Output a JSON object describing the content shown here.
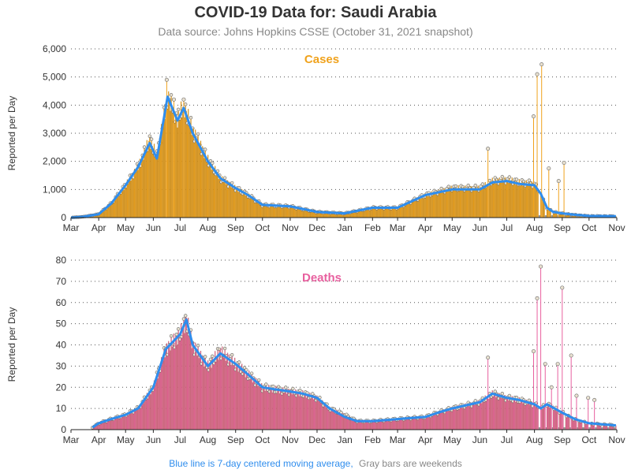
{
  "title": "COVID-19 Data for: Saudi Arabia",
  "subtitle": "Data source: Johns Hopkins CSSE (October 31, 2021 snapshot)",
  "footer": {
    "blue_note": "Blue line is 7-day centered moving average,",
    "gray_note": "Gray bars are weekends"
  },
  "colors": {
    "cases": "#f0a21c",
    "deaths": "#e8609f",
    "average_line": "#2f8ded",
    "weekend": "#888888",
    "grid": "#555555"
  },
  "chart_data": [
    {
      "type": "bar",
      "panel": "cases",
      "title": "Cases",
      "ylabel": "Reported per Day",
      "ylim": [
        0,
        6000
      ],
      "yticks": [
        "0",
        "1,000",
        "2,000",
        "3,000",
        "4,000",
        "5,000",
        "6,000"
      ],
      "ytick_values": [
        0,
        1000,
        2000,
        3000,
        4000,
        5000,
        6000
      ],
      "xticks": [
        "Mar",
        "Apr",
        "May",
        "Jun",
        "Jul",
        "Aug",
        "Sep",
        "Oct",
        "Nov",
        "Dec",
        "Jan",
        "Feb",
        "Mar",
        "Apr",
        "May",
        "Jun",
        "Jul",
        "Aug",
        "Sep",
        "Oct",
        "Nov"
      ],
      "grid": "horizontal dotted",
      "x_start": "2020-03-01",
      "x_end": "2021-11-01",
      "series": [
        {
          "name": "Cases",
          "style": "bars",
          "x": [
            "2020-03-01",
            "2020-03-15",
            "2020-04-01",
            "2020-04-15",
            "2020-05-01",
            "2020-05-15",
            "2020-05-28",
            "2020-06-05",
            "2020-06-17",
            "2020-06-28",
            "2020-07-05",
            "2020-07-15",
            "2020-08-01",
            "2020-08-15",
            "2020-09-01",
            "2020-09-15",
            "2020-10-01",
            "2020-11-01",
            "2020-12-01",
            "2021-01-01",
            "2021-02-01",
            "2021-03-01",
            "2021-04-01",
            "2021-05-01",
            "2021-06-01",
            "2021-06-15",
            "2021-07-01",
            "2021-07-15",
            "2021-08-01",
            "2021-08-08",
            "2021-08-15",
            "2021-08-22",
            "2021-09-01",
            "2021-09-15",
            "2021-10-01",
            "2021-10-31"
          ],
          "values": [
            0,
            30,
            120,
            500,
            1150,
            1800,
            2750,
            2200,
            4300,
            3500,
            4000,
            3100,
            2050,
            1400,
            1050,
            800,
            450,
            400,
            200,
            150,
            350,
            350,
            800,
            1050,
            1050,
            1300,
            1350,
            1250,
            1200,
            800,
            350,
            200,
            150,
            100,
            60,
            50
          ]
        },
        {
          "name": "7-day centered moving average",
          "style": "line",
          "x": [
            "2020-03-01",
            "2020-03-15",
            "2020-04-01",
            "2020-04-15",
            "2020-05-01",
            "2020-05-15",
            "2020-05-28",
            "2020-06-05",
            "2020-06-17",
            "2020-06-28",
            "2020-07-05",
            "2020-07-15",
            "2020-08-01",
            "2020-08-15",
            "2020-09-01",
            "2020-09-15",
            "2020-10-01",
            "2020-11-01",
            "2020-12-01",
            "2021-01-01",
            "2021-02-01",
            "2021-03-01",
            "2021-04-01",
            "2021-05-01",
            "2021-06-01",
            "2021-06-15",
            "2021-07-01",
            "2021-07-15",
            "2021-08-01",
            "2021-08-08",
            "2021-08-15",
            "2021-08-22",
            "2021-09-01",
            "2021-09-15",
            "2021-10-01",
            "2021-10-31"
          ],
          "values": [
            0,
            30,
            120,
            500,
            1150,
            1800,
            2650,
            2100,
            4300,
            3450,
            3900,
            3000,
            2000,
            1400,
            1050,
            800,
            450,
            400,
            200,
            150,
            350,
            350,
            800,
            1000,
            1000,
            1250,
            1300,
            1200,
            1150,
            850,
            350,
            200,
            150,
            100,
            60,
            50
          ]
        }
      ],
      "spikes": {
        "x": [
          "2020-06-16",
          "2020-06-24",
          "2020-07-05",
          "2021-06-10",
          "2021-07-31",
          "2021-08-04",
          "2021-08-09",
          "2021-08-17",
          "2021-08-28",
          "2021-09-03"
        ],
        "values": [
          4900,
          4200,
          4200,
          2450,
          3600,
          5100,
          5450,
          1750,
          1300,
          1950
        ]
      }
    },
    {
      "type": "bar",
      "panel": "deaths",
      "title": "Deaths",
      "ylabel": "Reported per Day",
      "ylim": [
        0,
        80
      ],
      "yticks": [
        "0",
        "10",
        "20",
        "30",
        "40",
        "50",
        "60",
        "70",
        "80"
      ],
      "ytick_values": [
        0,
        10,
        20,
        30,
        40,
        50,
        60,
        70,
        80
      ],
      "xticks": [
        "Mar",
        "Apr",
        "May",
        "Jun",
        "Jul",
        "Aug",
        "Sep",
        "Oct",
        "Nov",
        "Dec",
        "Jan",
        "Feb",
        "Mar",
        "Apr",
        "May",
        "Jun",
        "Jul",
        "Aug",
        "Sep",
        "Oct",
        "Nov"
      ],
      "grid": "horizontal dotted",
      "x_start": "2020-03-01",
      "x_end": "2021-11-01",
      "series": [
        {
          "name": "Deaths",
          "style": "bars",
          "x": [
            "2020-03-25",
            "2020-04-01",
            "2020-04-15",
            "2020-05-01",
            "2020-05-15",
            "2020-06-01",
            "2020-06-15",
            "2020-07-01",
            "2020-07-08",
            "2020-07-15",
            "2020-08-01",
            "2020-08-15",
            "2020-09-01",
            "2020-09-15",
            "2020-10-01",
            "2020-10-15",
            "2020-11-01",
            "2020-11-15",
            "2020-12-01",
            "2020-12-15",
            "2021-01-01",
            "2021-01-15",
            "2021-02-01",
            "2021-03-01",
            "2021-04-01",
            "2021-04-15",
            "2021-05-01",
            "2021-06-01",
            "2021-06-15",
            "2021-07-01",
            "2021-07-15",
            "2021-08-01",
            "2021-08-08",
            "2021-08-15",
            "2021-09-01",
            "2021-09-15",
            "2021-10-01",
            "2021-10-31"
          ],
          "values": [
            1,
            3,
            5,
            7,
            10,
            20,
            38,
            45,
            52,
            40,
            30,
            37,
            31,
            26,
            20,
            19,
            18,
            17,
            15,
            10,
            7,
            4,
            4,
            5,
            6,
            8,
            10,
            13,
            17,
            15,
            14,
            12,
            10,
            12,
            8,
            5,
            3,
            2
          ]
        },
        {
          "name": "7-day centered moving average",
          "style": "line",
          "x": [
            "2020-03-25",
            "2020-04-01",
            "2020-04-15",
            "2020-05-01",
            "2020-05-15",
            "2020-06-01",
            "2020-06-15",
            "2020-07-01",
            "2020-07-08",
            "2020-07-15",
            "2020-08-01",
            "2020-08-15",
            "2020-09-01",
            "2020-09-15",
            "2020-10-01",
            "2020-10-15",
            "2020-11-01",
            "2020-11-15",
            "2020-12-01",
            "2020-12-15",
            "2021-01-01",
            "2021-01-15",
            "2021-02-01",
            "2021-03-01",
            "2021-04-01",
            "2021-04-15",
            "2021-05-01",
            "2021-06-01",
            "2021-06-15",
            "2021-07-01",
            "2021-07-15",
            "2021-08-01",
            "2021-08-08",
            "2021-08-15",
            "2021-09-01",
            "2021-09-15",
            "2021-10-01",
            "2021-10-31"
          ],
          "values": [
            1,
            3,
            5,
            7,
            10,
            20,
            38,
            45,
            52,
            40,
            30,
            36,
            31,
            26,
            20,
            19,
            18,
            17,
            15,
            10,
            6,
            4,
            4,
            5,
            6,
            8,
            10,
            13,
            17,
            15,
            14,
            12,
            10,
            12,
            8,
            5,
            3,
            2
          ]
        }
      ],
      "spikes": {
        "x": [
          "2021-06-10",
          "2021-07-31",
          "2021-08-04",
          "2021-08-08",
          "2021-08-13",
          "2021-08-20",
          "2021-08-27",
          "2021-09-01",
          "2021-09-11",
          "2021-09-17",
          "2021-09-30",
          "2021-10-07"
        ],
        "values": [
          34,
          37,
          62,
          77,
          31,
          20,
          31,
          67,
          35,
          16,
          15,
          14
        ]
      }
    }
  ]
}
